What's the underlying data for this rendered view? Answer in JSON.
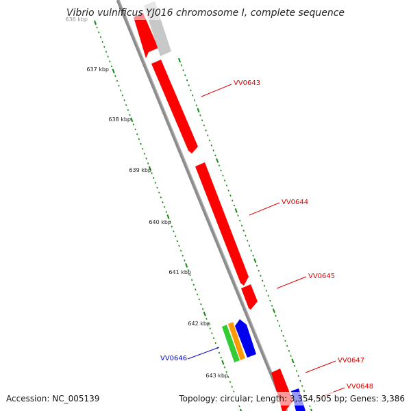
{
  "title": "Vibrio vulnificus YJ016 chromosome I, complete sequence",
  "footer": {
    "accession": "Accession: NC_005139",
    "topology": "Topology: circular; Length: 3,354,505 bp; Genes: 3,386"
  },
  "colors": {
    "backbone": "#8c8c8c",
    "tick_dots": "#118811",
    "forward_gene": "#ff0000",
    "gray_gene": "#c8c8c8",
    "label_red": "#dd0000",
    "label_blue": "#0000cc",
    "green_gene": "#33cc33",
    "orange_gene": "#ff9900",
    "blue_gene": "#0000ee"
  },
  "ticks": [
    "636 kbp",
    "637 kbp",
    "638 kbp",
    "639 kbp",
    "640 kbp",
    "641 kbp",
    "642 kbp",
    "643 kbp"
  ],
  "gene_labels": [
    {
      "text": "VV0643",
      "color": "red"
    },
    {
      "text": "VV0644",
      "color": "red"
    },
    {
      "text": "VV0645",
      "color": "red"
    },
    {
      "text": "VV0646",
      "color": "blue"
    },
    {
      "text": "VV0647",
      "color": "red"
    },
    {
      "text": "VV0648",
      "color": "red"
    }
  ]
}
